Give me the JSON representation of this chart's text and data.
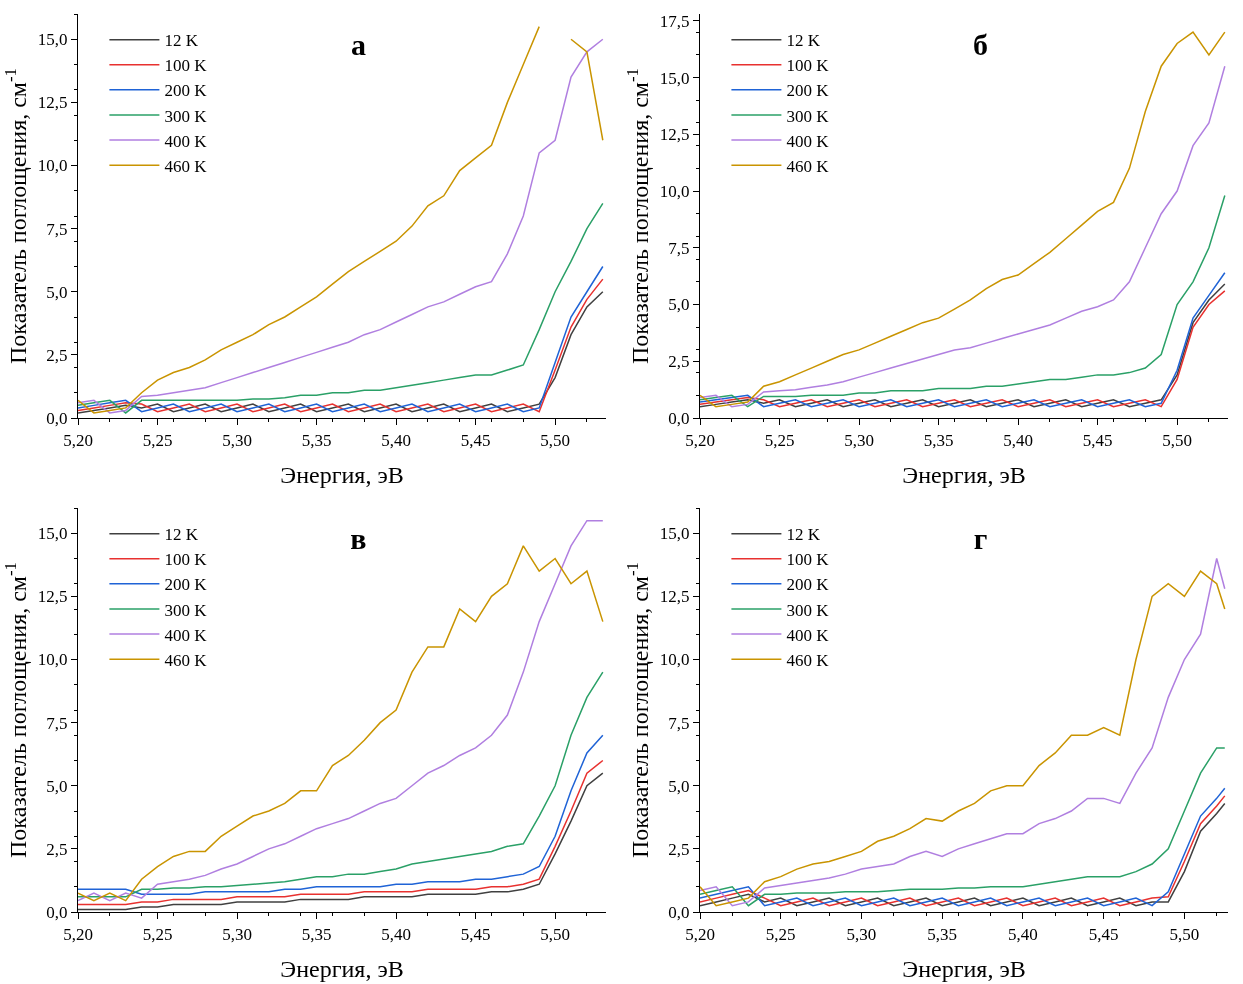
{
  "chart_data": [
    {
      "type": "line",
      "title": "а",
      "xlabel": "Энергия, эВ",
      "ylabel": "Показатель поглощения, см$^{-1}$",
      "legend": "top left",
      "grid": false,
      "marker": "none",
      "line_style": "solid",
      "x": [
        5.2,
        5.21,
        5.22,
        5.23,
        5.24,
        5.25,
        5.26,
        5.27,
        5.28,
        5.29,
        5.3,
        5.31,
        5.32,
        5.33,
        5.34,
        5.35,
        5.36,
        5.37,
        5.38,
        5.39,
        5.4,
        5.41,
        5.42,
        5.43,
        5.44,
        5.45,
        5.46,
        5.47,
        5.48,
        5.49,
        5.5,
        5.51,
        5.52,
        5.53
      ],
      "xlim": [
        5.2,
        5.532
      ],
      "xticks": [
        {
          "value": 5.2,
          "label": "5,20"
        },
        {
          "value": 5.25,
          "label": "5,25"
        },
        {
          "value": 5.3,
          "label": "5,30"
        },
        {
          "value": 5.35,
          "label": "5,35"
        },
        {
          "value": 5.4,
          "label": "5,40"
        },
        {
          "value": 5.45,
          "label": "5,45"
        },
        {
          "value": 5.5,
          "label": "5,50"
        }
      ],
      "ylim": [
        0,
        16
      ],
      "yticks": [
        {
          "value": 0,
          "label": "0,0"
        },
        {
          "value": 2.5,
          "label": "2,5"
        },
        {
          "value": 5,
          "label": "5,0"
        },
        {
          "value": 7.5,
          "label": "7,5"
        },
        {
          "value": 10,
          "label": "10,0"
        },
        {
          "value": 12.5,
          "label": "12,5"
        },
        {
          "value": 15,
          "label": "15,0"
        }
      ],
      "series": [
        {
          "name": "12 K",
          "color": "#404040",
          "values": [
            0.2,
            0.3,
            0.4,
            0.5,
            0.4,
            0.55,
            0.25,
            0.4,
            0.55,
            0.25,
            0.4,
            0.55,
            0.25,
            0.4,
            0.55,
            0.25,
            0.4,
            0.55,
            0.25,
            0.4,
            0.55,
            0.25,
            0.4,
            0.55,
            0.25,
            0.4,
            0.55,
            0.25,
            0.4,
            0.55,
            1.6,
            3.3,
            4.4,
            5.0
          ]
        },
        {
          "name": "100 K",
          "color": "#e8312f",
          "values": [
            0.3,
            0.4,
            0.5,
            0.6,
            0.55,
            0.25,
            0.4,
            0.55,
            0.25,
            0.4,
            0.55,
            0.25,
            0.4,
            0.55,
            0.25,
            0.4,
            0.55,
            0.25,
            0.4,
            0.55,
            0.25,
            0.4,
            0.55,
            0.25,
            0.4,
            0.55,
            0.25,
            0.4,
            0.55,
            0.25,
            1.9,
            3.6,
            4.7,
            5.5
          ]
        },
        {
          "name": "200 K",
          "color": "#1f63d6",
          "values": [
            0.4,
            0.5,
            0.6,
            0.7,
            0.25,
            0.4,
            0.55,
            0.25,
            0.4,
            0.55,
            0.25,
            0.4,
            0.55,
            0.25,
            0.4,
            0.55,
            0.25,
            0.4,
            0.55,
            0.25,
            0.4,
            0.55,
            0.25,
            0.4,
            0.55,
            0.25,
            0.4,
            0.55,
            0.25,
            0.4,
            2.2,
            4.0,
            5.0,
            6.0
          ]
        },
        {
          "name": "300 K",
          "color": "#2aa067",
          "values": [
            0.5,
            0.6,
            0.7,
            0.2,
            0.7,
            0.7,
            0.7,
            0.7,
            0.7,
            0.7,
            0.7,
            0.75,
            0.75,
            0.8,
            0.9,
            0.9,
            1.0,
            1.0,
            1.1,
            1.1,
            1.2,
            1.3,
            1.4,
            1.5,
            1.6,
            1.7,
            1.7,
            1.9,
            2.1,
            3.5,
            5.0,
            6.2,
            7.5,
            8.5
          ]
        },
        {
          "name": "400 K",
          "color": "#b07fe0",
          "values": [
            0.6,
            0.7,
            0.2,
            0.3,
            0.85,
            0.9,
            1.0,
            1.1,
            1.2,
            1.4,
            1.6,
            1.8,
            2.0,
            2.2,
            2.4,
            2.6,
            2.8,
            3.0,
            3.3,
            3.5,
            3.8,
            4.1,
            4.4,
            4.6,
            4.9,
            5.2,
            5.4,
            6.5,
            8.0,
            10.5,
            11.0,
            13.5,
            14.5,
            15.0
          ]
        },
        {
          "name": "460 K",
          "color": "#c99400",
          "values": [
            0.7,
            0.2,
            0.3,
            0.4,
            1.0,
            1.5,
            1.8,
            2.0,
            2.3,
            2.7,
            3.0,
            3.3,
            3.7,
            4.0,
            4.4,
            4.8,
            5.3,
            5.8,
            6.2,
            6.6,
            7.0,
            7.6,
            8.4,
            8.8,
            9.8,
            10.3,
            10.8,
            12.5,
            14.0,
            15.5,
            null,
            15.0,
            14.5,
            11.0
          ]
        }
      ]
    },
    {
      "type": "line",
      "title": "б",
      "xlabel": "Энергия, эВ",
      "ylabel": "Показатель поглощения, см$^{-1}$",
      "legend": "top left",
      "grid": false,
      "marker": "none",
      "line_style": "solid",
      "x": [
        5.2,
        5.21,
        5.22,
        5.23,
        5.24,
        5.25,
        5.26,
        5.27,
        5.28,
        5.29,
        5.3,
        5.31,
        5.32,
        5.33,
        5.34,
        5.35,
        5.36,
        5.37,
        5.38,
        5.39,
        5.4,
        5.41,
        5.42,
        5.43,
        5.44,
        5.45,
        5.46,
        5.47,
        5.48,
        5.49,
        5.5,
        5.51,
        5.52,
        5.53
      ],
      "xlim": [
        5.2,
        5.532
      ],
      "xticks": [
        {
          "value": 5.2,
          "label": "5,20"
        },
        {
          "value": 5.25,
          "label": "5,25"
        },
        {
          "value": 5.3,
          "label": "5,30"
        },
        {
          "value": 5.35,
          "label": "5,35"
        },
        {
          "value": 5.4,
          "label": "5,40"
        },
        {
          "value": 5.45,
          "label": "5,45"
        },
        {
          "value": 5.5,
          "label": "5,50"
        }
      ],
      "ylim": [
        0,
        17.8
      ],
      "yticks": [
        {
          "value": 0,
          "label": "0,0"
        },
        {
          "value": 2.5,
          "label": "2,5"
        },
        {
          "value": 5,
          "label": "5,0"
        },
        {
          "value": 7.5,
          "label": "7,5"
        },
        {
          "value": 10,
          "label": "10,0"
        },
        {
          "value": 12.5,
          "label": "12,5"
        },
        {
          "value": 15,
          "label": "15,0"
        },
        {
          "value": 17.5,
          "label": "17,5"
        }
      ],
      "series": [
        {
          "name": "12 K",
          "color": "#404040",
          "values": [
            0.5,
            0.6,
            0.7,
            0.8,
            0.65,
            0.8,
            0.5,
            0.65,
            0.8,
            0.5,
            0.65,
            0.8,
            0.5,
            0.65,
            0.8,
            0.5,
            0.65,
            0.8,
            0.5,
            0.65,
            0.8,
            0.5,
            0.65,
            0.8,
            0.5,
            0.65,
            0.8,
            0.5,
            0.65,
            0.8,
            1.9,
            4.2,
            5.2,
            5.9
          ]
        },
        {
          "name": "100 K",
          "color": "#e8312f",
          "values": [
            0.6,
            0.7,
            0.8,
            0.9,
            0.8,
            0.5,
            0.65,
            0.8,
            0.5,
            0.65,
            0.8,
            0.5,
            0.65,
            0.8,
            0.5,
            0.65,
            0.8,
            0.5,
            0.65,
            0.8,
            0.5,
            0.65,
            0.8,
            0.5,
            0.65,
            0.8,
            0.5,
            0.65,
            0.8,
            0.5,
            1.7,
            4.0,
            5.0,
            5.6
          ]
        },
        {
          "name": "200 K",
          "color": "#1f63d6",
          "values": [
            0.7,
            0.8,
            0.9,
            1.0,
            0.5,
            0.65,
            0.8,
            0.5,
            0.65,
            0.8,
            0.5,
            0.65,
            0.8,
            0.5,
            0.65,
            0.8,
            0.5,
            0.65,
            0.8,
            0.5,
            0.65,
            0.8,
            0.5,
            0.65,
            0.8,
            0.5,
            0.65,
            0.8,
            0.5,
            0.65,
            2.1,
            4.4,
            5.4,
            6.4
          ]
        },
        {
          "name": "300 K",
          "color": "#2aa067",
          "values": [
            0.8,
            0.9,
            1.0,
            0.5,
            0.95,
            0.95,
            0.95,
            1.0,
            1.0,
            1.0,
            1.1,
            1.1,
            1.2,
            1.2,
            1.2,
            1.3,
            1.3,
            1.3,
            1.4,
            1.4,
            1.5,
            1.6,
            1.7,
            1.7,
            1.8,
            1.9,
            1.9,
            2.0,
            2.2,
            2.8,
            5.0,
            6.0,
            7.5,
            9.8
          ]
        },
        {
          "name": "400 K",
          "color": "#b07fe0",
          "values": [
            0.9,
            1.0,
            0.5,
            0.6,
            1.15,
            1.2,
            1.25,
            1.35,
            1.45,
            1.6,
            1.8,
            2.0,
            2.2,
            2.4,
            2.6,
            2.8,
            3.0,
            3.1,
            3.3,
            3.5,
            3.7,
            3.9,
            4.1,
            4.4,
            4.7,
            4.9,
            5.2,
            6.0,
            7.5,
            9.0,
            10.0,
            12.0,
            13.0,
            15.5
          ]
        },
        {
          "name": "460 K",
          "color": "#c99400",
          "values": [
            1.0,
            0.5,
            0.6,
            0.7,
            1.4,
            1.6,
            1.9,
            2.2,
            2.5,
            2.8,
            3.0,
            3.3,
            3.6,
            3.9,
            4.2,
            4.4,
            4.8,
            5.2,
            5.7,
            6.1,
            6.3,
            6.8,
            7.3,
            7.9,
            8.5,
            9.1,
            9.5,
            11.0,
            13.5,
            15.5,
            16.5,
            17.0,
            16.0,
            17.0
          ]
        }
      ]
    },
    {
      "type": "line",
      "title": "в",
      "xlabel": "Энергия, эВ",
      "ylabel": "Показатель поглощения, см$^{-1}$",
      "legend": "top left",
      "grid": false,
      "marker": "none",
      "line_style": "solid",
      "x": [
        5.2,
        5.21,
        5.22,
        5.23,
        5.24,
        5.25,
        5.26,
        5.27,
        5.28,
        5.29,
        5.3,
        5.31,
        5.32,
        5.33,
        5.34,
        5.35,
        5.36,
        5.37,
        5.38,
        5.39,
        5.4,
        5.41,
        5.42,
        5.43,
        5.44,
        5.45,
        5.46,
        5.47,
        5.48,
        5.49,
        5.5,
        5.51,
        5.52,
        5.53
      ],
      "xlim": [
        5.2,
        5.532
      ],
      "xticks": [
        {
          "value": 5.2,
          "label": "5,20"
        },
        {
          "value": 5.25,
          "label": "5,25"
        },
        {
          "value": 5.3,
          "label": "5,30"
        },
        {
          "value": 5.35,
          "label": "5,35"
        },
        {
          "value": 5.4,
          "label": "5,40"
        },
        {
          "value": 5.45,
          "label": "5,45"
        },
        {
          "value": 5.5,
          "label": "5,50"
        }
      ],
      "ylim": [
        0,
        16
      ],
      "yticks": [
        {
          "value": 0,
          "label": "0,0"
        },
        {
          "value": 2.5,
          "label": "2,5"
        },
        {
          "value": 5,
          "label": "5,0"
        },
        {
          "value": 7.5,
          "label": "7,5"
        },
        {
          "value": 10,
          "label": "10,0"
        },
        {
          "value": 12.5,
          "label": "12,5"
        },
        {
          "value": 15,
          "label": "15,0"
        }
      ],
      "series": [
        {
          "name": "12 K",
          "color": "#404040",
          "values": [
            0.1,
            0.1,
            0.1,
            0.1,
            0.2,
            0.2,
            0.3,
            0.3,
            0.3,
            0.3,
            0.4,
            0.4,
            0.4,
            0.4,
            0.5,
            0.5,
            0.5,
            0.5,
            0.6,
            0.6,
            0.6,
            0.6,
            0.7,
            0.7,
            0.7,
            0.7,
            0.8,
            0.8,
            0.9,
            1.1,
            2.3,
            3.6,
            5.0,
            5.5
          ]
        },
        {
          "name": "100 K",
          "color": "#e8312f",
          "values": [
            0.3,
            0.3,
            0.3,
            0.3,
            0.4,
            0.4,
            0.5,
            0.5,
            0.5,
            0.5,
            0.6,
            0.6,
            0.6,
            0.6,
            0.7,
            0.7,
            0.7,
            0.7,
            0.8,
            0.8,
            0.8,
            0.8,
            0.9,
            0.9,
            0.9,
            0.9,
            1.0,
            1.0,
            1.1,
            1.3,
            2.6,
            4.0,
            5.5,
            6.0
          ]
        },
        {
          "name": "200 K",
          "color": "#1f63d6",
          "values": [
            0.9,
            0.9,
            0.9,
            0.9,
            0.7,
            0.7,
            0.7,
            0.7,
            0.8,
            0.8,
            0.8,
            0.8,
            0.8,
            0.9,
            0.9,
            1.0,
            1.0,
            1.0,
            1.0,
            1.0,
            1.1,
            1.1,
            1.2,
            1.2,
            1.2,
            1.3,
            1.3,
            1.4,
            1.5,
            1.8,
            3.0,
            4.8,
            6.3,
            7.0
          ]
        },
        {
          "name": "300 K",
          "color": "#2aa067",
          "values": [
            0.6,
            0.6,
            0.6,
            0.6,
            0.9,
            0.9,
            0.95,
            0.95,
            1.0,
            1.0,
            1.05,
            1.1,
            1.15,
            1.2,
            1.3,
            1.4,
            1.4,
            1.5,
            1.5,
            1.6,
            1.7,
            1.9,
            2.0,
            2.1,
            2.2,
            2.3,
            2.4,
            2.6,
            2.7,
            3.8,
            5.0,
            7.0,
            8.5,
            9.5
          ]
        },
        {
          "name": "400 K",
          "color": "#b07fe0",
          "values": [
            0.45,
            0.75,
            0.45,
            0.75,
            0.55,
            1.1,
            1.2,
            1.3,
            1.45,
            1.7,
            1.9,
            2.2,
            2.5,
            2.7,
            3.0,
            3.3,
            3.5,
            3.7,
            4.0,
            4.3,
            4.5,
            5.0,
            5.5,
            5.8,
            6.2,
            6.5,
            7.0,
            7.8,
            9.5,
            11.5,
            13.0,
            14.5,
            15.5,
            15.5
          ]
        },
        {
          "name": "460 K",
          "color": "#c99400",
          "values": [
            0.75,
            0.45,
            0.75,
            0.45,
            1.3,
            1.8,
            2.2,
            2.4,
            2.4,
            3.0,
            3.4,
            3.8,
            4.0,
            4.3,
            4.8,
            4.8,
            5.8,
            6.2,
            6.8,
            7.5,
            8.0,
            9.5,
            10.5,
            10.5,
            12.0,
            11.5,
            12.5,
            13.0,
            14.5,
            13.5,
            14.0,
            13.0,
            13.5,
            11.5
          ]
        }
      ]
    },
    {
      "type": "line",
      "title": "г",
      "xlabel": "Энергия, эВ",
      "ylabel": "Показатель поглощения, см$^{-1}$",
      "legend": "top left",
      "grid": false,
      "marker": "none",
      "line_style": "solid",
      "x": [
        5.2,
        5.21,
        5.22,
        5.23,
        5.24,
        5.25,
        5.26,
        5.27,
        5.28,
        5.29,
        5.3,
        5.31,
        5.32,
        5.33,
        5.34,
        5.35,
        5.36,
        5.37,
        5.38,
        5.39,
        5.4,
        5.41,
        5.42,
        5.43,
        5.44,
        5.45,
        5.46,
        5.47,
        5.48,
        5.49,
        5.5,
        5.51,
        5.52,
        5.525
      ],
      "xlim": [
        5.2,
        5.527
      ],
      "xticks": [
        {
          "value": 5.2,
          "label": "5,20"
        },
        {
          "value": 5.25,
          "label": "5,25"
        },
        {
          "value": 5.3,
          "label": "5,30"
        },
        {
          "value": 5.35,
          "label": "5,35"
        },
        {
          "value": 5.4,
          "label": "5,40"
        },
        {
          "value": 5.45,
          "label": "5,45"
        },
        {
          "value": 5.5,
          "label": "5,50"
        }
      ],
      "ylim": [
        0,
        16
      ],
      "yticks": [
        {
          "value": 0,
          "label": "0,0"
        },
        {
          "value": 2.5,
          "label": "2,5"
        },
        {
          "value": 5,
          "label": "5,0"
        },
        {
          "value": 7.5,
          "label": "7,5"
        },
        {
          "value": 10,
          "label": "10,0"
        },
        {
          "value": 12.5,
          "label": "12,5"
        },
        {
          "value": 15,
          "label": "15,0"
        }
      ],
      "series": [
        {
          "name": "12 K",
          "color": "#404040",
          "values": [
            0.25,
            0.4,
            0.55,
            0.7,
            0.4,
            0.55,
            0.25,
            0.4,
            0.55,
            0.25,
            0.4,
            0.55,
            0.25,
            0.4,
            0.55,
            0.25,
            0.4,
            0.55,
            0.25,
            0.4,
            0.55,
            0.25,
            0.4,
            0.55,
            0.25,
            0.4,
            0.55,
            0.25,
            0.4,
            0.4,
            1.6,
            3.2,
            3.9,
            4.3
          ]
        },
        {
          "name": "100 K",
          "color": "#e8312f",
          "values": [
            0.4,
            0.55,
            0.7,
            0.85,
            0.55,
            0.25,
            0.4,
            0.55,
            0.25,
            0.4,
            0.55,
            0.25,
            0.4,
            0.55,
            0.25,
            0.4,
            0.55,
            0.25,
            0.4,
            0.55,
            0.25,
            0.4,
            0.55,
            0.25,
            0.4,
            0.55,
            0.25,
            0.4,
            0.55,
            0.6,
            2.0,
            3.5,
            4.2,
            4.6
          ]
        },
        {
          "name": "200 K",
          "color": "#1f63d6",
          "values": [
            0.55,
            0.7,
            0.85,
            1.0,
            0.25,
            0.4,
            0.55,
            0.25,
            0.4,
            0.55,
            0.25,
            0.4,
            0.55,
            0.25,
            0.4,
            0.55,
            0.25,
            0.4,
            0.55,
            0.25,
            0.4,
            0.55,
            0.25,
            0.4,
            0.55,
            0.25,
            0.4,
            0.55,
            0.25,
            0.8,
            2.3,
            3.8,
            4.5,
            4.9
          ]
        },
        {
          "name": "300 K",
          "color": "#2aa067",
          "values": [
            0.7,
            0.85,
            1.0,
            0.25,
            0.7,
            0.7,
            0.75,
            0.75,
            0.75,
            0.8,
            0.8,
            0.8,
            0.85,
            0.9,
            0.9,
            0.9,
            0.95,
            0.95,
            1.0,
            1.0,
            1.0,
            1.1,
            1.2,
            1.3,
            1.4,
            1.4,
            1.4,
            1.6,
            1.9,
            2.5,
            4.0,
            5.5,
            6.5,
            6.5
          ]
        },
        {
          "name": "400 K",
          "color": "#b07fe0",
          "values": [
            0.85,
            1.0,
            0.25,
            0.4,
            0.95,
            1.05,
            1.15,
            1.25,
            1.35,
            1.5,
            1.7,
            1.8,
            1.9,
            2.2,
            2.4,
            2.2,
            2.5,
            2.7,
            2.9,
            3.1,
            3.1,
            3.5,
            3.7,
            4.0,
            4.5,
            4.5,
            4.3,
            5.5,
            6.5,
            8.5,
            10.0,
            11.0,
            14.0,
            12.8
          ]
        },
        {
          "name": "460 K",
          "color": "#c99400",
          "values": [
            1.0,
            0.25,
            0.4,
            0.55,
            1.2,
            1.4,
            1.7,
            1.9,
            2.0,
            2.2,
            2.4,
            2.8,
            3.0,
            3.3,
            3.7,
            3.6,
            4.0,
            4.3,
            4.8,
            5.0,
            5.0,
            5.8,
            6.3,
            7.0,
            7.0,
            7.3,
            7.0,
            10.0,
            12.5,
            13.0,
            12.5,
            13.5,
            13.0,
            12.0
          ]
        }
      ]
    }
  ]
}
